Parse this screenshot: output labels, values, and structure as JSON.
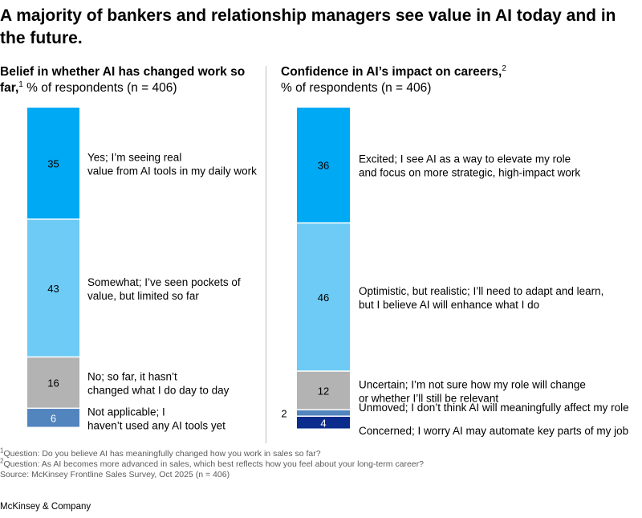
{
  "title": "A majority of bankers and relationship managers see value in AI today and in the future.",
  "panels": [
    {
      "heading_bold": "Belief in whether AI has changed work so far,",
      "heading_sup": "1",
      "heading_rest": " % of respondents (n = 406)"
    },
    {
      "heading_bold": "Confidence in AI’s impact on careers,",
      "heading_sup": "2",
      "heading_rest": "% of respondents  (n = 406)"
    }
  ],
  "chart_data": [
    {
      "type": "bar",
      "stacked": true,
      "title": "Belief in whether AI has changed work so far",
      "unit": "% of respondents",
      "categories": [
        "Yes; I’m seeing real value from AI tools in my daily work",
        "Somewhat; I’ve seen pockets of value, but limited so far",
        "No; so far, it hasn’t changed what I do day to day",
        "Not applicable; I haven’t used any AI tools yet"
      ],
      "values": [
        35,
        43,
        16,
        6
      ],
      "colors": [
        "#00a9f4",
        "#6dcbf5",
        "#b3b3b3",
        "#5284bd"
      ]
    },
    {
      "type": "bar",
      "stacked": true,
      "title": "Confidence in AI’s impact on careers",
      "unit": "% of respondents",
      "categories": [
        "Excited; I see AI as a way to elevate my role and focus on more strategic, high-impact work",
        "Optimistic, but realistic; I’ll need to adapt and learn, but I believe AI will enhance what I do",
        "Uncertain; I’m not sure how my role will change or whether I’ll still be relevant",
        "Unmoved; I don’t think AI will meaningfully affect my role",
        "Concerned; I worry AI may automate key parts of my job"
      ],
      "values": [
        36,
        46,
        12,
        2,
        4
      ],
      "colors": [
        "#00a9f4",
        "#6dcbf5",
        "#b3b3b3",
        "#5284bd",
        "#0b2c8c"
      ]
    }
  ],
  "footnotes": [
    {
      "sup": "1",
      "text": "Question: Do you believe AI has meaningfully changed how you work in sales so far?"
    },
    {
      "sup": "2",
      "text": "Question: As AI becomes more advanced in sales, which best reflects how you feel about your long-term career?"
    },
    {
      "sup": "",
      "text": " Source: McKinsey Frontline Sales Survey, Oct 2025 (n = 406)"
    }
  ],
  "brand": "McKinsey & Company"
}
